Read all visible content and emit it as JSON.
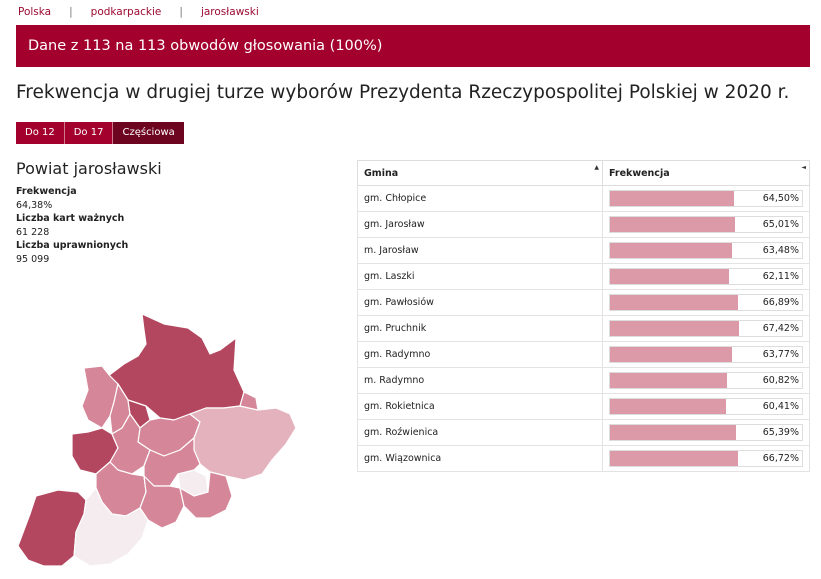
{
  "breadcrumb": {
    "items": [
      "Polska",
      "podkarpackie",
      "jarosławski"
    ],
    "separator": "|"
  },
  "banner": {
    "text": "Dane z 113 na 113 obwodów głosowania (100%)"
  },
  "page_title": "Frekwencja w drugiej turze wyborów Prezydenta Rzeczypospolitej Polskiej w 2020 r.",
  "tabs": [
    {
      "label": "Do 12",
      "active": false
    },
    {
      "label": "Do 17",
      "active": false
    },
    {
      "label": "Częściowa",
      "active": true
    }
  ],
  "powiat": {
    "title": "Powiat jarosławski",
    "stats": [
      {
        "label": "Frekwencja",
        "value": "64,38%"
      },
      {
        "label": "Liczba kart ważnych",
        "value": "61 228"
      },
      {
        "label": "Liczba uprawnionych",
        "value": "95 099"
      }
    ]
  },
  "table": {
    "headers": {
      "gmina": "Gmina",
      "frekwencja": "Frekwencja"
    },
    "sort_icons": {
      "gmina": "▲",
      "frekwencja": "◄"
    },
    "rows": [
      {
        "gmina": "gm. Chłopice",
        "frekwencja": "64,50%",
        "pct": 64.5
      },
      {
        "gmina": "gm. Jarosław",
        "frekwencja": "65,01%",
        "pct": 65.01
      },
      {
        "gmina": "m. Jarosław",
        "frekwencja": "63,48%",
        "pct": 63.48
      },
      {
        "gmina": "gm. Laszki",
        "frekwencja": "62,11%",
        "pct": 62.11
      },
      {
        "gmina": "gm. Pawłosiów",
        "frekwencja": "66,89%",
        "pct": 66.89
      },
      {
        "gmina": "gm. Pruchnik",
        "frekwencja": "67,42%",
        "pct": 67.42
      },
      {
        "gmina": "gm. Radymno",
        "frekwencja": "63,77%",
        "pct": 63.77
      },
      {
        "gmina": "m. Radymno",
        "frekwencja": "60,82%",
        "pct": 60.82
      },
      {
        "gmina": "gm. Rokietnica",
        "frekwencja": "60,41%",
        "pct": 60.41
      },
      {
        "gmina": "gm. Roźwienica",
        "frekwencja": "65,39%",
        "pct": 65.39
      },
      {
        "gmina": "gm. Wiązownica",
        "frekwencja": "66,72%",
        "pct": 66.72
      }
    ]
  },
  "colors": {
    "accent": "#a3002d",
    "accent_dark": "#6e0520",
    "bar": "#dc9aa9",
    "map_dark": "#b2475f",
    "map_mid": "#d58698",
    "map_light": "#e4b2bd",
    "map_pale": "#f4ecee"
  }
}
